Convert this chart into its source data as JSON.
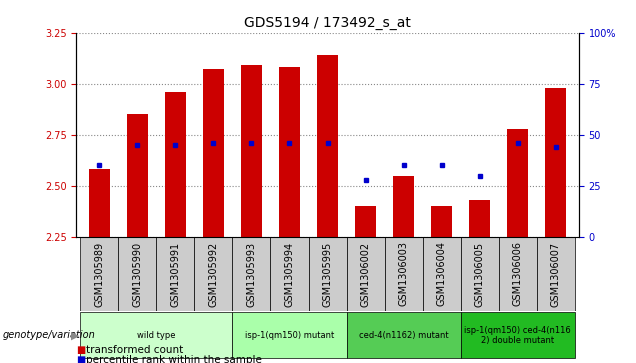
{
  "title": "GDS5194 / 173492_s_at",
  "samples": [
    "GSM1305989",
    "GSM1305990",
    "GSM1305991",
    "GSM1305992",
    "GSM1305993",
    "GSM1305994",
    "GSM1305995",
    "GSM1306002",
    "GSM1306003",
    "GSM1306004",
    "GSM1306005",
    "GSM1306006",
    "GSM1306007"
  ],
  "transformed_count": [
    2.58,
    2.85,
    2.96,
    3.07,
    3.09,
    3.08,
    3.14,
    2.4,
    2.55,
    2.4,
    2.43,
    2.78,
    2.98
  ],
  "percentile_rank": [
    35,
    45,
    45,
    46,
    46,
    46,
    46,
    28,
    35,
    35,
    30,
    46,
    44
  ],
  "ylim_left": [
    2.25,
    3.25
  ],
  "ylim_right": [
    0,
    100
  ],
  "yticks_left": [
    2.25,
    2.5,
    2.75,
    3.0,
    3.25
  ],
  "yticks_right": [
    0,
    25,
    50,
    75,
    100
  ],
  "bar_color": "#CC0000",
  "dot_color": "#0000CC",
  "bar_bottom": 2.25,
  "groups": [
    {
      "label": "wild type",
      "indices": [
        0,
        1,
        2,
        3
      ],
      "color": "#ccffcc"
    },
    {
      "label": "isp-1(qm150) mutant",
      "indices": [
        4,
        5,
        6
      ],
      "color": "#aaffaa"
    },
    {
      "label": "ced-4(n1162) mutant",
      "indices": [
        7,
        8,
        9
      ],
      "color": "#55cc55"
    },
    {
      "label": "isp-1(qm150) ced-4(n116\n2) double mutant",
      "indices": [
        10,
        11,
        12
      ],
      "color": "#22bb22"
    }
  ],
  "xlabel_color": "#CC0000",
  "ylabel_right_color": "#0000CC",
  "grid_color": "#888888",
  "grid_style": "dotted",
  "background_plot": "#ffffff",
  "tick_label_bg": "#cccccc",
  "title_fontsize": 10,
  "tick_fontsize": 7,
  "label_fontsize": 7,
  "legend_fontsize": 7.5
}
